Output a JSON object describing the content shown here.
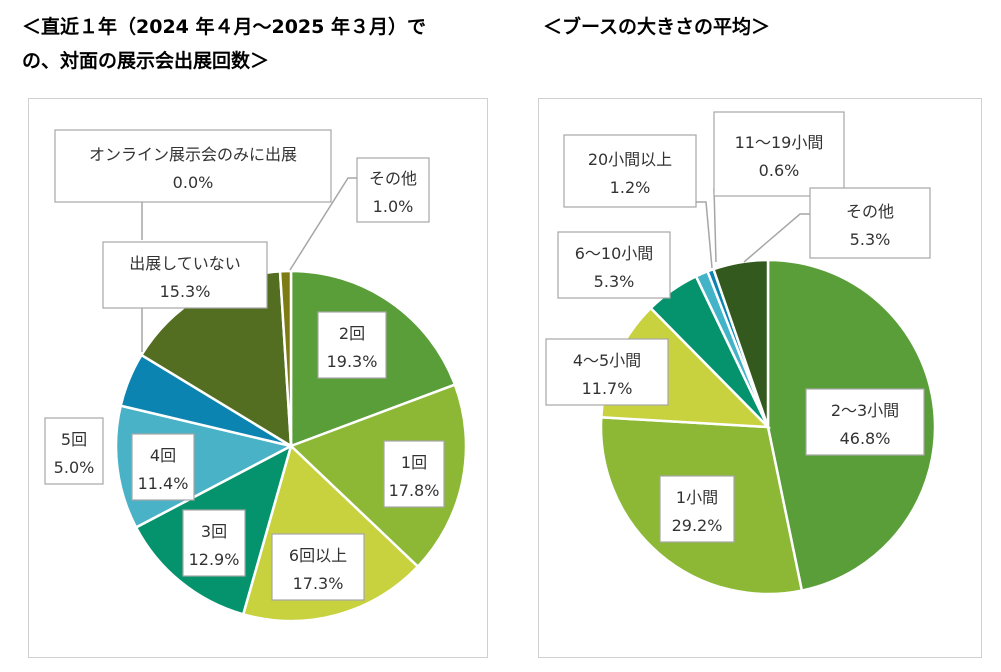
{
  "headings": {
    "left_line1": "＜直近１年（2024 年４月～2025 年３月）で",
    "left_line2": "の、対面の展示会出展回数＞",
    "right": "＜ブースの大きさの平均＞"
  },
  "colors": {
    "green": "#5a9e3a",
    "yellowgreen": "#8cb836",
    "lime": "#c8d23e",
    "teal": "#05936e",
    "lightblue": "#49b2c6",
    "blue": "#0b84b1",
    "olive": "#536d21",
    "darkgreen": "#33591f",
    "gold": "#7d7b14",
    "cyan": "#43b3c8"
  },
  "chart_data": [
    {
      "type": "pie",
      "title": "＜直近１年（2024 年４月～2025 年３月）での、対面の展示会出展回数＞",
      "categories": [
        "2回",
        "1回",
        "6回以上",
        "3回",
        "4回",
        "5回",
        "出展していない",
        "オンライン展示会のみに出展",
        "その他"
      ],
      "values": [
        19.3,
        17.8,
        17.3,
        12.9,
        11.4,
        5.0,
        15.3,
        0.0,
        1.0
      ],
      "value_labels": [
        "19.3%",
        "17.8%",
        "17.3%",
        "12.9%",
        "11.4%",
        "5.0%",
        "15.3%",
        "0.0%",
        "1.0%"
      ],
      "colors": [
        "#5a9e3a",
        "#8cb836",
        "#c8d23e",
        "#05936e",
        "#49b2c6",
        "#0b84b1",
        "#536d21",
        "#536d21",
        "#7d7b14"
      ],
      "start": "12 o'clock",
      "direction": "clockwise"
    },
    {
      "type": "pie",
      "title": "＜ブースの大きさの平均＞",
      "categories": [
        "2～3小間",
        "1小間",
        "4～5小間",
        "6～10小間",
        "20小間以上",
        "11～19小間",
        "その他"
      ],
      "values": [
        46.8,
        29.2,
        11.7,
        5.3,
        1.2,
        0.6,
        5.3
      ],
      "value_labels": [
        "46.8%",
        "29.2%",
        "11.7%",
        "5.3%",
        "1.2%",
        "0.6%",
        "5.3%"
      ],
      "colors": [
        "#5a9e3a",
        "#8cb836",
        "#c8d23e",
        "#05936e",
        "#43b3c8",
        "#0b84b1",
        "#33591f"
      ],
      "start": "12 o'clock",
      "direction": "clockwise"
    }
  ]
}
